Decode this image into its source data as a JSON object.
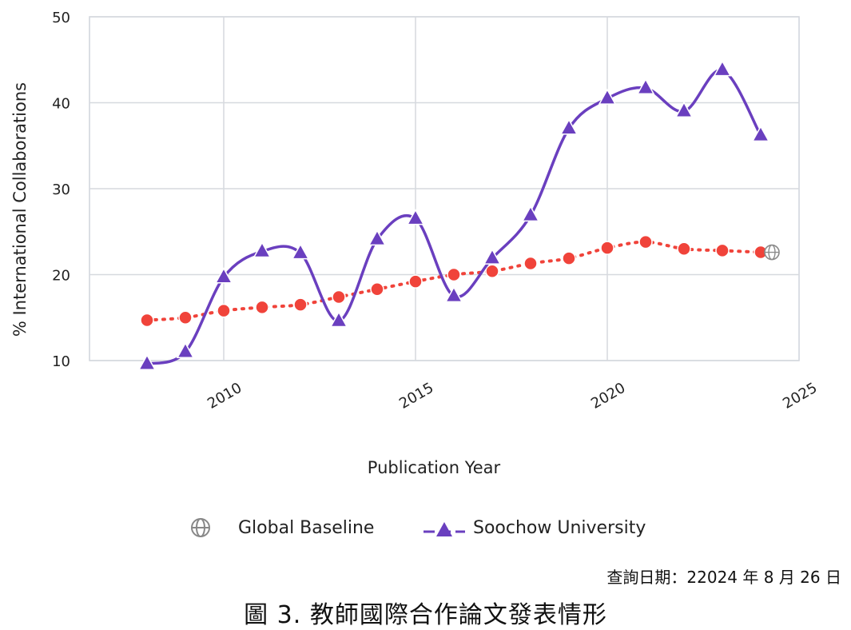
{
  "chart_data": {
    "type": "line",
    "xlabel": "Publication Year",
    "ylabel": "% International Collaborations",
    "xlim": [
      2006.5,
      2025
    ],
    "ylim": [
      10,
      50
    ],
    "x_ticks": [
      2010,
      2015,
      2020,
      2025
    ],
    "y_ticks": [
      10,
      20,
      30,
      40,
      50
    ],
    "grid": true,
    "legend_position": "bottom",
    "x": [
      2008,
      2009,
      2010,
      2011,
      2012,
      2013,
      2014,
      2015,
      2016,
      2017,
      2018,
      2019,
      2020,
      2021,
      2022,
      2023,
      2024
    ],
    "series": [
      {
        "name": "Global Baseline",
        "color": "#f0433a",
        "line_style": "dotted",
        "marker": "circle",
        "values": [
          14.7,
          15.0,
          15.8,
          16.2,
          16.5,
          17.4,
          18.3,
          19.2,
          20.0,
          20.4,
          21.3,
          21.9,
          23.1,
          23.8,
          23.0,
          22.8,
          22.6
        ]
      },
      {
        "name": "Soochow University",
        "color": "#6a3fbf",
        "line_style": "solid",
        "marker": "triangle",
        "values": [
          9.6,
          11.0,
          19.7,
          22.7,
          22.5,
          14.6,
          24.1,
          26.5,
          17.5,
          21.9,
          26.9,
          37.0,
          40.5,
          41.7,
          39.0,
          43.8,
          36.2
        ]
      }
    ]
  },
  "legend": {
    "items": [
      {
        "label": "Global Baseline",
        "icon": "globe-icon"
      },
      {
        "label": "Soochow University",
        "icon": "triangle-line-icon"
      }
    ]
  },
  "footer": {
    "query_date": "查詢日期：22024 年 8 月 26 日",
    "caption": "圖 3.  教師國際合作論文發表情形"
  }
}
